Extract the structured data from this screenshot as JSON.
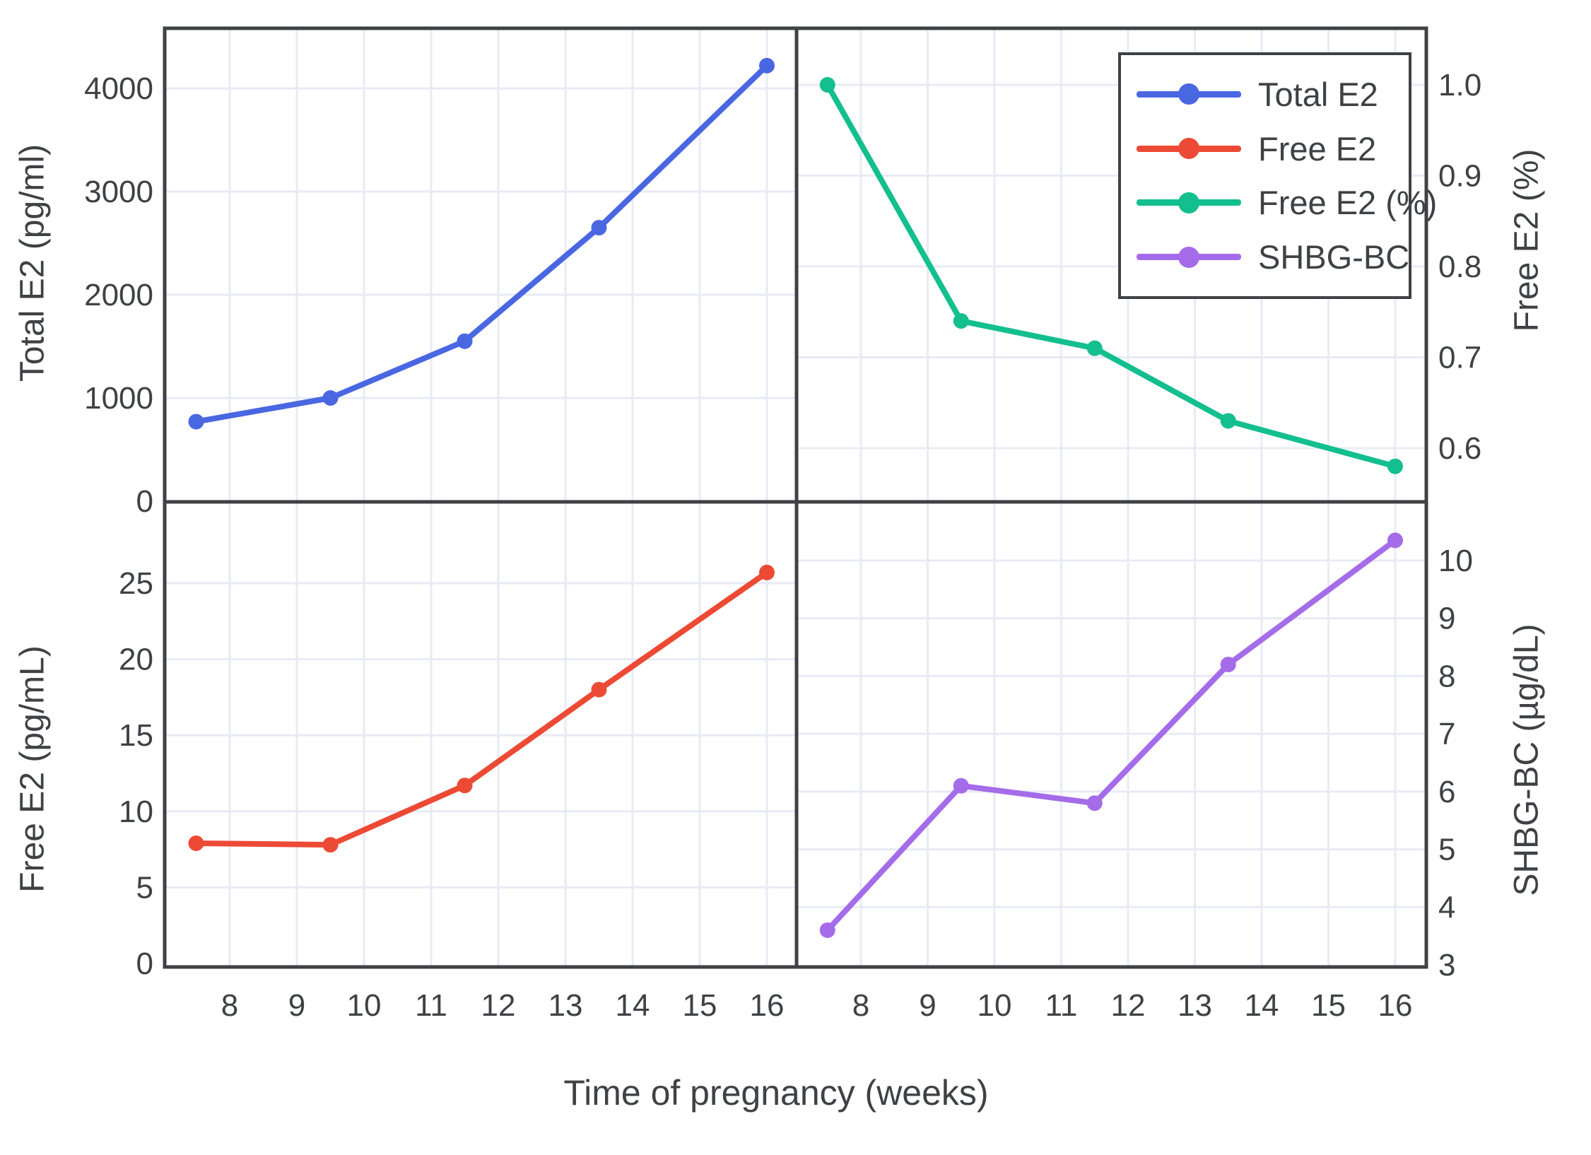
{
  "chart_data": {
    "type": "line",
    "title": "",
    "xlabel": "Time of pregnancy (weeks)",
    "x": [
      7.5,
      9.5,
      11.5,
      13.5,
      16
    ],
    "x_ticks": {
      "values": [
        8,
        9,
        10,
        11,
        12,
        13,
        14,
        15,
        16
      ],
      "labels": [
        "8",
        "9",
        "10",
        "11",
        "12",
        "13",
        "14",
        "15",
        "16"
      ]
    },
    "grid": true,
    "layout_hint": "2x2 shared-x subplots",
    "subplots": [
      {
        "id": "total_e2",
        "position": "top-left",
        "ylabel": "Total E2 (pg/ml)",
        "axis_side": "left",
        "ylim": [
          0,
          4580
        ],
        "y_ticks": {
          "values": [
            0,
            1000,
            2000,
            3000,
            4000
          ],
          "labels": [
            "0",
            "1000",
            "2000",
            "3000",
            "4000"
          ]
        },
        "series_name": "Total E2",
        "color": "#4a67e2",
        "values": [
          770,
          1000,
          1550,
          2650,
          4220
        ]
      },
      {
        "id": "free_e2_pct",
        "position": "top-right",
        "ylabel": "Free E2 (%)",
        "axis_side": "right",
        "ylim": [
          0.54,
          1.06
        ],
        "y_ticks": {
          "values": [
            0.6,
            0.7,
            0.8,
            0.9,
            1.0
          ],
          "labels": [
            "0.6",
            "0.7",
            "0.8",
            "0.9",
            "1.0"
          ]
        },
        "series_name": "Free E2 (%)",
        "color": "#13bf8e",
        "values": [
          1.0,
          0.74,
          0.71,
          0.63,
          0.58
        ]
      },
      {
        "id": "free_e2",
        "position": "bottom-left",
        "ylabel": "Free E2 (pg/mL)",
        "axis_side": "left",
        "ylim": [
          0,
          30.5
        ],
        "y_ticks": {
          "values": [
            0,
            5,
            10,
            15,
            20,
            25
          ],
          "labels": [
            "0",
            "5",
            "10",
            "15",
            "20",
            "25"
          ]
        },
        "series_name": "Free E2",
        "color": "#ec4a35",
        "values": [
          7.9,
          7.8,
          11.7,
          18.0,
          25.7
        ]
      },
      {
        "id": "shbg_bc",
        "position": "bottom-right",
        "ylabel": "SHBG-BC (µg/dL)",
        "axis_side": "right",
        "ylim": [
          3,
          10.45
        ],
        "y_ticks": {
          "values": [
            3,
            4,
            5,
            6,
            7,
            8,
            9,
            10
          ],
          "labels": [
            "3",
            "4",
            "5",
            "6",
            "7",
            "8",
            "9",
            "10"
          ]
        },
        "series_name": "SHBG-BC",
        "color": "#a56ce9",
        "values": [
          3.6,
          6.1,
          5.8,
          8.2,
          10.35
        ]
      }
    ],
    "legend": {
      "position": "top-right-panel",
      "items": [
        {
          "label": "Total E2",
          "color": "#4a67e2"
        },
        {
          "label": "Free E2",
          "color": "#ec4a35"
        },
        {
          "label": "Free E2 (%)",
          "color": "#13bf8e"
        },
        {
          "label": "SHBG-BC",
          "color": "#a56ce9"
        }
      ]
    },
    "style": {
      "axis_color": "#3f4145",
      "grid_color": "#e8ebf5",
      "text_color": "#3f4145",
      "background": "#ffffff"
    }
  }
}
